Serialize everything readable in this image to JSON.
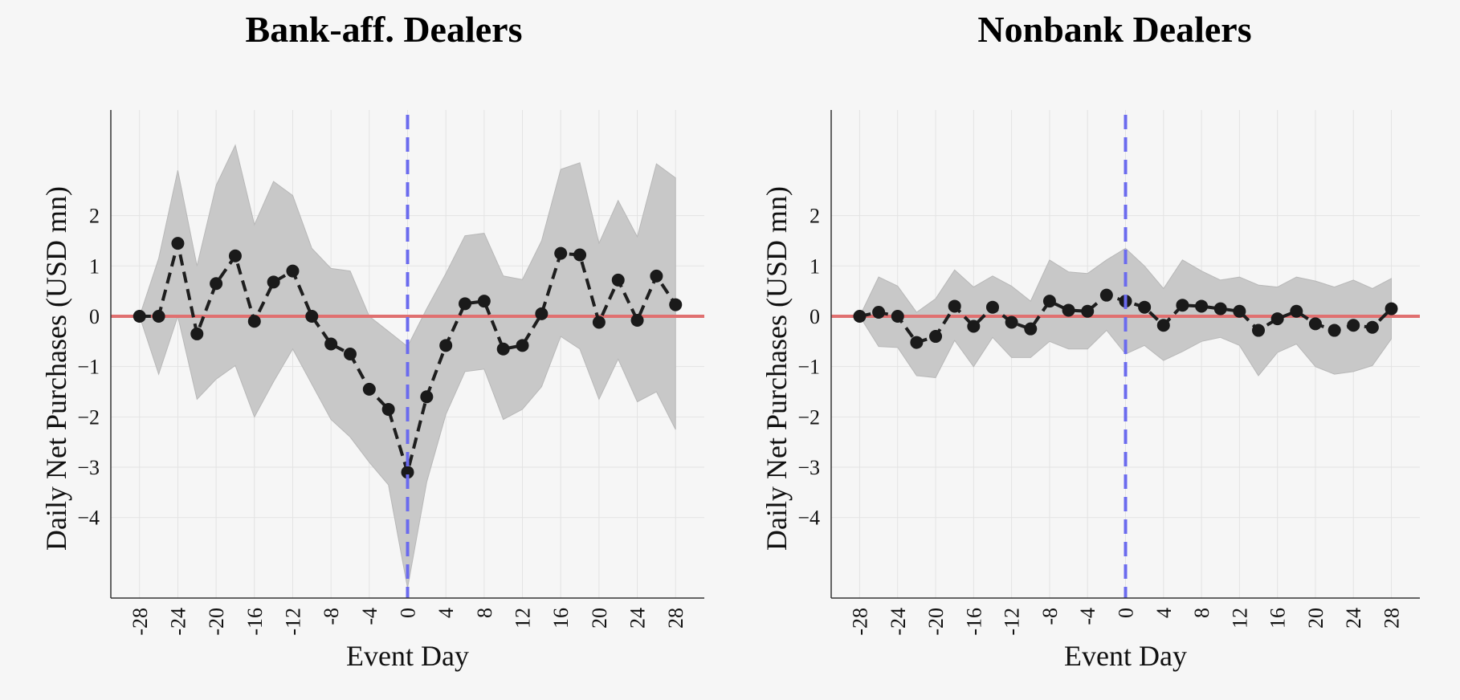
{
  "chart_data": [
    {
      "type": "line",
      "title": "Bank-aff. Dealers",
      "xlabel": "Event Day",
      "ylabel": "Daily Net Purchases (USD mn)",
      "xlim": [
        -31,
        31
      ],
      "ylim": [
        -5.6,
        4.1
      ],
      "xticks": [
        -28,
        -24,
        -20,
        -16,
        -12,
        -8,
        -4,
        0,
        4,
        8,
        12,
        16,
        20,
        24,
        28
      ],
      "xtick_labels": [
        "-28",
        "-24",
        "-20",
        "-16",
        "-12",
        "-8",
        "-4",
        "0",
        "4",
        "8",
        "12",
        "16",
        "20",
        "24",
        "28"
      ],
      "yticks": [
        2,
        1,
        0,
        -1,
        -2,
        -3,
        -4
      ],
      "ytick_labels": [
        "2",
        "1",
        "0",
        "−1",
        "−2",
        "−3",
        "−4"
      ],
      "event_line_x": 0,
      "zero_line_y": 0,
      "series": [
        {
          "name": "Daily net purchases",
          "x": [
            -28,
            -26,
            -24,
            -22,
            -20,
            -18,
            -16,
            -14,
            -12,
            -10,
            -8,
            -6,
            -4,
            -2,
            0,
            2,
            4,
            6,
            8,
            10,
            12,
            14,
            16,
            18,
            20,
            22,
            24,
            26,
            28
          ],
          "values": [
            0.0,
            0.0,
            1.45,
            -0.35,
            0.65,
            1.2,
            -0.1,
            0.68,
            0.9,
            0.0,
            -0.55,
            -0.75,
            -1.45,
            -1.85,
            -3.1,
            -1.6,
            -0.58,
            0.25,
            0.3,
            -0.65,
            -0.58,
            0.05,
            1.25,
            1.22,
            -0.12,
            0.72,
            -0.08,
            0.8,
            0.23
          ],
          "ci_lower": [
            0.0,
            -1.15,
            0.0,
            -1.65,
            -1.25,
            -0.98,
            -2.0,
            -1.3,
            -0.65,
            -1.35,
            -2.05,
            -2.4,
            -2.9,
            -3.35,
            -5.4,
            -3.3,
            -1.95,
            -1.1,
            -1.05,
            -2.05,
            -1.85,
            -1.4,
            -0.4,
            -0.65,
            -1.65,
            -0.85,
            -1.7,
            -1.5,
            -2.25
          ],
          "ci_upper": [
            0.0,
            1.15,
            2.9,
            1.0,
            2.6,
            3.4,
            1.82,
            2.68,
            2.4,
            1.35,
            0.95,
            0.9,
            0.0,
            -0.3,
            -0.6,
            0.15,
            0.85,
            1.6,
            1.65,
            0.8,
            0.73,
            1.5,
            2.92,
            3.05,
            1.45,
            2.3,
            1.58,
            3.03,
            2.75
          ]
        }
      ]
    },
    {
      "type": "line",
      "title": "Nonbank Dealers",
      "xlabel": "Event Day",
      "ylabel": "Daily Net Purchases (USD mn)",
      "xlim": [
        -31,
        31
      ],
      "ylim": [
        -5.6,
        4.1
      ],
      "xticks": [
        -28,
        -24,
        -20,
        -16,
        -12,
        -8,
        -4,
        0,
        4,
        8,
        12,
        16,
        20,
        24,
        28
      ],
      "xtick_labels": [
        "-28",
        "-24",
        "-20",
        "-16",
        "-12",
        "-8",
        "-4",
        "0",
        "4",
        "8",
        "12",
        "16",
        "20",
        "24",
        "28"
      ],
      "yticks": [
        2,
        1,
        0,
        -1,
        -2,
        -3,
        -4
      ],
      "ytick_labels": [
        "2",
        "1",
        "0",
        "−1",
        "−2",
        "−3",
        "−4"
      ],
      "event_line_x": 0,
      "zero_line_y": 0,
      "series": [
        {
          "name": "Daily net purchases",
          "x": [
            -28,
            -26,
            -24,
            -22,
            -20,
            -18,
            -16,
            -14,
            -12,
            -10,
            -8,
            -6,
            -4,
            -2,
            0,
            2,
            4,
            6,
            8,
            10,
            12,
            14,
            16,
            18,
            20,
            22,
            24,
            26,
            28
          ],
          "values": [
            0.0,
            0.08,
            0.0,
            -0.52,
            -0.4,
            0.2,
            -0.2,
            0.18,
            -0.12,
            -0.25,
            0.3,
            0.12,
            0.1,
            0.42,
            0.3,
            0.18,
            -0.18,
            0.22,
            0.2,
            0.15,
            0.1,
            -0.28,
            -0.05,
            0.1,
            -0.15,
            -0.28,
            -0.18,
            -0.22,
            0.15
          ],
          "ci_lower": [
            0.0,
            -0.6,
            -0.62,
            -1.18,
            -1.22,
            -0.48,
            -1.0,
            -0.42,
            -0.82,
            -0.82,
            -0.5,
            -0.65,
            -0.65,
            -0.28,
            -0.75,
            -0.58,
            -0.88,
            -0.7,
            -0.5,
            -0.42,
            -0.58,
            -1.18,
            -0.72,
            -0.55,
            -1.0,
            -1.15,
            -1.1,
            -0.98,
            -0.45
          ],
          "ci_upper": [
            0.0,
            0.78,
            0.6,
            0.08,
            0.35,
            0.92,
            0.58,
            0.8,
            0.6,
            0.3,
            1.12,
            0.88,
            0.85,
            1.12,
            1.35,
            1.0,
            0.55,
            1.12,
            0.9,
            0.72,
            0.78,
            0.62,
            0.58,
            0.78,
            0.7,
            0.58,
            0.72,
            0.55,
            0.75
          ]
        }
      ]
    }
  ]
}
